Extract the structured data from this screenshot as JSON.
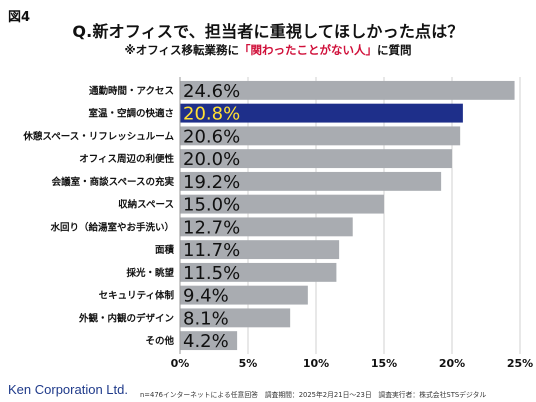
{
  "figure_label": "図4",
  "title": "Q.新オフィスで、担当者に重視してほしかった点は？",
  "subtitle": {
    "prefix": "※オフィス移転業務に",
    "highlight": "「関わったことがない人」",
    "suffix": "に質問"
  },
  "brand": "Ken Corporation Ltd.",
  "footnote": "n=476インターネットによる任意回答　調査期間：2025年2月21日〜23日　調査実行者：株式会社STSデジタル",
  "colors": {
    "bar_default": "#a9acb1",
    "bar_highlight": "#1e2f8a",
    "label_default": "#111111",
    "label_highlight": "#ffe033"
  },
  "chart_data": {
    "type": "bar",
    "orientation": "horizontal",
    "categories": [
      "通勤時間・アクセス",
      "室温・空調の快適さ",
      "休憩スペース・リフレッシュルーム",
      "オフィス周辺の利便性",
      "会議室・商談スペースの充実",
      "収納スペース",
      "水回り（給湯室やお手洗い）",
      "面積",
      "採光・眺望",
      "セキュリティ体制",
      "外観・内観のデザイン",
      "その他"
    ],
    "values": [
      24.6,
      20.8,
      20.6,
      20.0,
      19.2,
      15.0,
      12.7,
      11.7,
      11.5,
      9.4,
      8.1,
      4.2
    ],
    "value_labels": [
      "24.6%",
      "20.8%",
      "20.6%",
      "20.0%",
      "19.2%",
      "15.0%",
      "12.7%",
      "11.7%",
      "11.5%",
      "9.4%",
      "8.1%",
      "4.2%"
    ],
    "highlight_index": 1,
    "xlim": [
      0,
      25
    ],
    "xticks": [
      0,
      5,
      10,
      15,
      20,
      25
    ],
    "xtick_labels": [
      "0%",
      "5%",
      "10%",
      "15%",
      "20%",
      "25%"
    ],
    "grid": true
  }
}
